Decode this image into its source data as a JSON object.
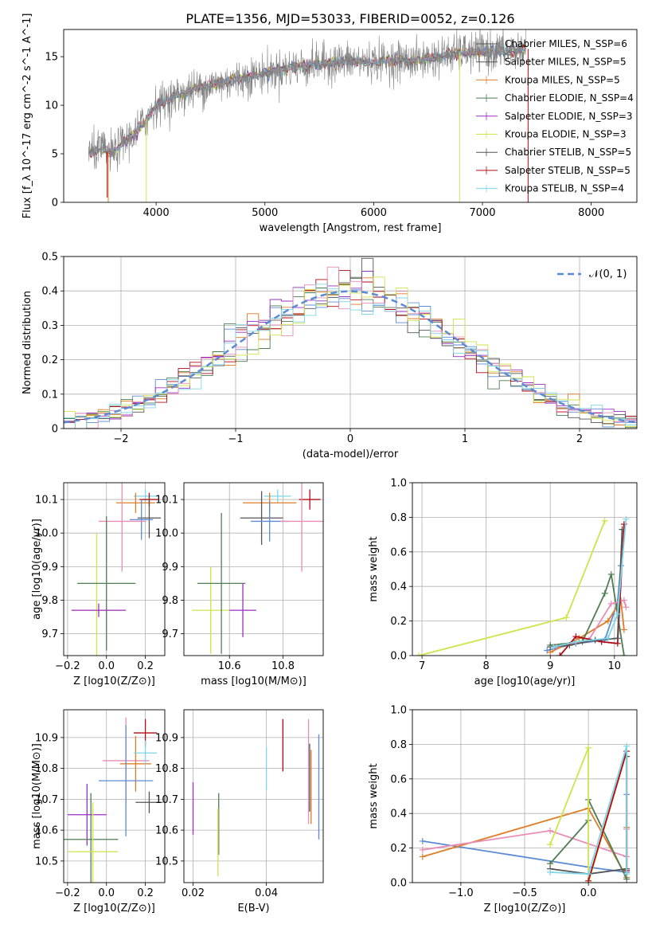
{
  "title": "PLATE=1356, MJD=53033, FIBERID=0052, z=0.126",
  "colors": {
    "blue": "#5b8bd6",
    "orange": "#e07b24",
    "green": "#4f7d54",
    "pink": "#e98cb6",
    "purple": "#9a2fc2",
    "yellow": "#cfe34a",
    "gray": "#555555",
    "red": "#b00b14",
    "cyan": "#7fd6e8",
    "dashed": "#5b8bd6"
  },
  "chart_data": [
    {
      "id": "spectrum",
      "type": "line",
      "xlabel": "wavelength [Angstrom, rest frame]",
      "ylabel": "Flux [f_λ 10^-17 erg cm^-2 s^-1 A^-1]",
      "xlim": [
        3150,
        8420
      ],
      "ylim": [
        0,
        17.8
      ],
      "xticks": [
        4000,
        5000,
        6000,
        7000,
        8000
      ],
      "yticks": [
        0,
        5,
        10,
        15
      ],
      "grid": false,
      "legend_position": "top-right",
      "legend": [
        {
          "label": "Chabrier MILES, N_SSP=6",
          "color": "gray"
        },
        {
          "label": "Salpeter MILES, N_SSP=5",
          "color": "gray"
        },
        {
          "label": "Kroupa MILES, N_SSP=5",
          "color": "orange"
        },
        {
          "label": "Chabrier ELODIE, N_SSP=4",
          "color": "green"
        },
        {
          "label": "Salpeter ELODIE, N_SSP=3",
          "color": "purple"
        },
        {
          "label": "Kroupa ELODIE, N_SSP=3",
          "color": "yellow"
        },
        {
          "label": "Chabrier STELIB, N_SSP=5",
          "color": "gray"
        },
        {
          "label": "Salpeter STELIB, N_SSP=5",
          "color": "red"
        },
        {
          "label": "Kroupa STELIB, N_SSP=4",
          "color": "cyan"
        }
      ],
      "continuum": {
        "x": [
          3380,
          3500,
          3600,
          3700,
          3800,
          3900,
          4000,
          4200,
          4400,
          4600,
          4800,
          5000,
          5200,
          5400,
          5600,
          5800,
          6000,
          6200,
          6400,
          6600,
          6800,
          7000,
          7200,
          7400
        ],
        "y": [
          5.0,
          5.5,
          5.0,
          6.2,
          7.0,
          8.5,
          10.0,
          11.0,
          11.8,
          12.3,
          12.8,
          13.3,
          13.8,
          14.1,
          14.4,
          14.5,
          14.5,
          14.6,
          14.6,
          15.0,
          15.4,
          15.5,
          15.6,
          15.8
        ]
      }
    },
    {
      "id": "residuals",
      "type": "area",
      "xlabel": "(data-model)/error",
      "ylabel": "Normed distribution",
      "xlim": [
        -2.5,
        2.5
      ],
      "ylim": [
        0,
        0.5
      ],
      "xticks": [
        -2,
        -1,
        0,
        1,
        2
      ],
      "yticks": [
        0.0,
        0.1,
        0.2,
        0.3,
        0.4,
        0.5
      ],
      "grid": true,
      "legend_position": "top-right",
      "reference_curve": {
        "label": "𝒩(0, 1)",
        "mean": 0,
        "sigma": 1
      }
    },
    {
      "id": "age_vs_Z",
      "type": "scatter",
      "xlabel": "Z [log10(Z/Z⊙)]",
      "ylabel": "age  [log10(age/yr)]",
      "xlim": [
        -0.22,
        0.3
      ],
      "ylim": [
        9.635,
        10.15
      ],
      "xticks": [
        -0.2,
        0.0,
        0.2
      ],
      "xticklabels": [
        "−0.2",
        "0.0",
        "0.2"
      ],
      "yticks": [
        9.7,
        9.8,
        9.9,
        10.0,
        10.1
      ],
      "grid": true,
      "points": [
        {
          "color": "cyan",
          "x": 0.2,
          "xerr": 0.06,
          "y": 10.11,
          "yerr": 0.02
        },
        {
          "color": "orange",
          "x": 0.15,
          "xerr": 0.1,
          "y": 10.09,
          "yerr": 0.03
        },
        {
          "color": "red",
          "x": 0.22,
          "xerr": 0.05,
          "y": 10.1,
          "yerr": 0.02
        },
        {
          "color": "gray",
          "x": 0.22,
          "xerr": 0.06,
          "y": 10.045,
          "yerr": 0.06
        },
        {
          "color": "blue",
          "x": 0.18,
          "xerr": 0.06,
          "y": 10.04,
          "yerr": 0.06
        },
        {
          "color": "pink",
          "x": 0.08,
          "xerr": 0.12,
          "y": 10.035,
          "yerr": 0.15
        },
        {
          "color": "yellow",
          "x": -0.05,
          "xerr": 0.13,
          "y": 9.77,
          "yerr": 0.23
        },
        {
          "color": "green",
          "x": 0.0,
          "xerr": 0.15,
          "y": 9.85,
          "yerr": 0.2
        },
        {
          "color": "purple",
          "x": -0.04,
          "xerr": 0.14,
          "y": 9.77,
          "yerr": 0.02
        }
      ]
    },
    {
      "id": "age_vs_mass",
      "type": "scatter",
      "xlabel": "mass [log10(M/M⊙)]",
      "ylabel": "",
      "xlim": [
        10.43,
        10.95
      ],
      "ylim": [
        9.635,
        10.15
      ],
      "xticks": [
        10.6,
        10.8
      ],
      "yticks": [
        9.7,
        9.8,
        9.9,
        10.0,
        10.1
      ],
      "grid": true,
      "points": [
        {
          "color": "cyan",
          "x": 10.78,
          "xerr": 0.05,
          "y": 10.11,
          "yerr": 0.02
        },
        {
          "color": "orange",
          "x": 10.75,
          "xerr": 0.1,
          "y": 10.09,
          "yerr": 0.03
        },
        {
          "color": "red",
          "x": 10.9,
          "xerr": 0.04,
          "y": 10.1,
          "yerr": 0.03
        },
        {
          "color": "gray",
          "x": 10.72,
          "xerr": 0.08,
          "y": 10.045,
          "yerr": 0.08
        },
        {
          "color": "blue",
          "x": 10.75,
          "xerr": 0.07,
          "y": 10.035,
          "yerr": 0.06
        },
        {
          "color": "pink",
          "x": 10.87,
          "xerr": 0.08,
          "y": 10.035,
          "yerr": 0.15
        },
        {
          "color": "yellow",
          "x": 10.53,
          "xerr": 0.07,
          "y": 9.77,
          "yerr": 0.13
        },
        {
          "color": "green",
          "x": 10.57,
          "xerr": 0.09,
          "y": 9.85,
          "yerr": 0.21
        },
        {
          "color": "purple",
          "x": 10.65,
          "xerr": 0.05,
          "y": 9.77,
          "yerr": 0.08
        }
      ]
    },
    {
      "id": "weight_vs_age",
      "type": "line",
      "xlabel": "age  [log10(age/yr)]",
      "ylabel": "mass weight",
      "xlim": [
        6.85,
        10.35
      ],
      "ylim": [
        0,
        1.0
      ],
      "xticks": [
        7,
        8,
        9,
        10
      ],
      "yticks": [
        0.0,
        0.2,
        0.4,
        0.6,
        0.8,
        1.0
      ],
      "grid": true,
      "series": [
        {
          "color": "yellow",
          "x": [
            6.95,
            9.25,
            9.85
          ],
          "y": [
            0.0,
            0.22,
            0.78
          ]
        },
        {
          "color": "blue",
          "x": [
            8.95,
            9.4,
            9.85,
            10.05,
            10.1
          ],
          "y": [
            0.03,
            0.07,
            0.09,
            0.31,
            0.52
          ]
        },
        {
          "color": "orange",
          "x": [
            9.0,
            9.45,
            9.9,
            10.1,
            10.15
          ],
          "y": [
            0.02,
            0.1,
            0.2,
            0.32,
            0.15
          ]
        },
        {
          "color": "green",
          "x": [
            9.0,
            9.5,
            9.85,
            9.95,
            10.15
          ],
          "y": [
            0.06,
            0.08,
            0.36,
            0.47,
            0.0
          ]
        },
        {
          "color": "pink",
          "x": [
            9.1,
            9.6,
            9.95,
            10.15,
            10.18
          ],
          "y": [
            0.05,
            0.09,
            0.3,
            0.32,
            0.28
          ]
        },
        {
          "color": "red",
          "x": [
            9.15,
            9.4,
            9.8,
            10.05,
            10.15
          ],
          "y": [
            0.0,
            0.11,
            0.08,
            0.07,
            0.76
          ]
        },
        {
          "color": "gray",
          "x": [
            9.0,
            9.3,
            9.7,
            10.05,
            10.12
          ],
          "y": [
            0.05,
            0.06,
            0.09,
            0.1,
            0.73
          ]
        },
        {
          "color": "cyan",
          "x": [
            9.05,
            9.4,
            9.9,
            10.05,
            10.18
          ],
          "y": [
            0.05,
            0.08,
            0.1,
            0.24,
            0.79
          ]
        }
      ]
    },
    {
      "id": "mass_vs_Z",
      "type": "scatter",
      "xlabel": "Z [log10(Z/Z⊙)]",
      "ylabel": "mass [log10(M/M⊙)]",
      "xlim": [
        -0.22,
        0.3
      ],
      "ylim": [
        10.43,
        10.99
      ],
      "xticks": [
        -0.2,
        0.0,
        0.2
      ],
      "xticklabels": [
        "−0.2",
        "0.0",
        "0.2"
      ],
      "yticks": [
        10.5,
        10.6,
        10.7,
        10.8,
        10.9
      ],
      "grid": true,
      "points": [
        {
          "color": "red",
          "x": 0.2,
          "xerr": 0.06,
          "y": 10.915,
          "yerr": 0.045
        },
        {
          "color": "pink",
          "x": 0.1,
          "xerr": 0.12,
          "y": 10.825,
          "yerr": 0.14
        },
        {
          "color": "orange",
          "x": 0.15,
          "xerr": 0.08,
          "y": 10.815,
          "yerr": 0.09
        },
        {
          "color": "blue",
          "x": 0.1,
          "xerr": 0.14,
          "y": 10.76,
          "yerr": 0.18
        },
        {
          "color": "gray",
          "x": 0.22,
          "xerr": 0.07,
          "y": 10.69,
          "yerr": 0.035
        },
        {
          "color": "purple",
          "x": -0.1,
          "xerr": 0.1,
          "y": 10.65,
          "yerr": 0.1
        },
        {
          "color": "green",
          "x": -0.08,
          "xerr": 0.14,
          "y": 10.57,
          "yerr": 0.15
        },
        {
          "color": "yellow",
          "x": -0.07,
          "xerr": 0.13,
          "y": 10.53,
          "yerr": 0.16
        },
        {
          "color": "cyan",
          "x": 0.2,
          "xerr": 0.06,
          "y": 10.85,
          "yerr": 0.04
        }
      ]
    },
    {
      "id": "mass_vs_ebv",
      "type": "scatter",
      "xlabel": "E(B-V)",
      "ylabel": "",
      "xlim": [
        0.0175,
        0.0555
      ],
      "ylim": [
        10.43,
        10.99
      ],
      "xticks": [
        0.02,
        0.04
      ],
      "xticklabels": [
        "0.02",
        "0.04"
      ],
      "yticks": [
        10.5,
        10.6,
        10.7,
        10.8,
        10.9
      ],
      "grid": true,
      "points": [
        {
          "color": "purple",
          "x": 0.02,
          "y": 10.67,
          "yerr": 0.085
        },
        {
          "color": "green",
          "x": 0.027,
          "y": 10.62,
          "yerr": 0.1
        },
        {
          "color": "yellow",
          "x": 0.0268,
          "y": 10.56,
          "yerr": 0.11
        },
        {
          "color": "cyan",
          "x": 0.04,
          "y": 10.8,
          "yerr": 0.07
        },
        {
          "color": "red",
          "x": 0.0445,
          "y": 10.875,
          "yerr": 0.085
        },
        {
          "color": "pink",
          "x": 0.0515,
          "y": 10.79,
          "yerr": 0.17
        },
        {
          "color": "gray",
          "x": 0.0518,
          "y": 10.77,
          "yerr": 0.11
        },
        {
          "color": "orange",
          "x": 0.0522,
          "y": 10.74,
          "yerr": 0.12
        },
        {
          "color": "blue",
          "x": 0.0543,
          "y": 10.74,
          "yerr": 0.17
        }
      ]
    },
    {
      "id": "weight_vs_Z",
      "type": "line",
      "xlabel": "Z [log10(Z/Z⊙)]",
      "ylabel": "mass weight",
      "xlim": [
        -1.38,
        0.38
      ],
      "ylim": [
        0,
        1.0
      ],
      "xticks": [
        -1.0,
        -0.5,
        0.0
      ],
      "xticklabels": [
        "−1.0",
        "−0.5",
        "0.0"
      ],
      "yticks": [
        0.0,
        0.2,
        0.4,
        0.6,
        0.8,
        1.0
      ],
      "grid": true,
      "series": [
        {
          "color": "blue",
          "x": [
            -1.3,
            0.0,
            0.3,
            0.3
          ],
          "y": [
            0.24,
            0.09,
            0.06,
            0.51
          ]
        },
        {
          "color": "orange",
          "x": [
            -1.3,
            0.0,
            0.3,
            0.3
          ],
          "y": [
            0.15,
            0.43,
            0.03,
            0.32
          ]
        },
        {
          "color": "pink",
          "x": [
            -1.3,
            -0.3,
            0.3,
            0.3
          ],
          "y": [
            0.19,
            0.3,
            0.15,
            0.31
          ]
        },
        {
          "color": "green",
          "x": [
            -0.3,
            0.0,
            0.0,
            0.3,
            0.3
          ],
          "y": [
            0.11,
            0.36,
            0.48,
            0.02,
            0.07
          ]
        },
        {
          "color": "yellow",
          "x": [
            -0.3,
            0.0,
            0.0,
            0.3
          ],
          "y": [
            0.22,
            0.78,
            0.0,
            0.76
          ]
        },
        {
          "color": "red",
          "x": [
            0.0,
            0.3,
            0.3
          ],
          "y": [
            0.01,
            0.76,
            0.07
          ]
        },
        {
          "color": "gray",
          "x": [
            -0.3,
            0.0,
            0.3,
            0.3
          ],
          "y": [
            0.08,
            0.05,
            0.08,
            0.73
          ]
        },
        {
          "color": "cyan",
          "x": [
            -0.3,
            0.0,
            0.3,
            0.3
          ],
          "y": [
            0.06,
            0.05,
            0.79,
            0.05
          ]
        }
      ]
    }
  ]
}
